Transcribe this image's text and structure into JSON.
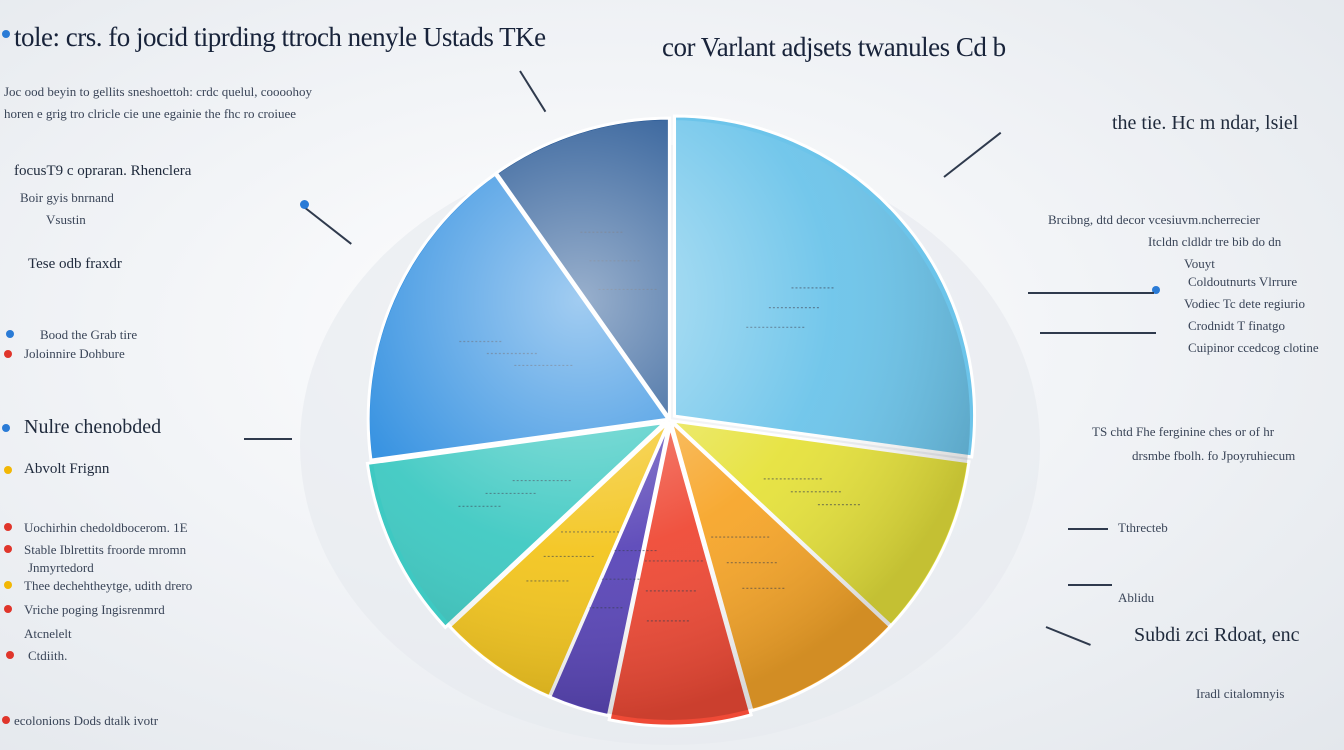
{
  "colors": {
    "bg": "#eef1f5",
    "ink": "#1f2a3c",
    "accent_red": "#e0352b",
    "accent_blue": "#2a7bd6",
    "accent_yellow": "#f2b705"
  },
  "header": {
    "left_title": "tole: crs. fo jocid tiprding ttroch nenyle Ustads TKe",
    "right_title": "cor Varlant adjsets twanules Cd b"
  },
  "left_panel": {
    "intro1": "Joc ood beyin to gellits sneshoettoh: crdc quelul, coooohoy",
    "intro2": "horen e grig tro clricle cie une egainie the fhc ro croiuee",
    "heading1": "focusT9 c opraran. Rhenclera",
    "sub1": "Boir gyis bnrnand",
    "sub2": "Vsustin",
    "sub3": "Tese odb fraxdr",
    "item1": "Bood the Grab tire",
    "item2": "Joloinnire Dohbure",
    "heading2": "Nulre chenobded",
    "item3": "Abvolt Frignn",
    "list": [
      "Uochirhin chedoldbocerom. 1E",
      "Stable Iblrettits froorde mromn",
      "Jnmyrtedord",
      "Thee dechehtheytge, udith drero",
      "Vriche poging Ingisrenmrd",
      "Atcnelelt",
      "Ctdiith."
    ],
    "footer": "ecolonions Dods dtalk ivotr"
  },
  "right_panel": {
    "heading": "the tie. Hc m ndar, lsiel",
    "block1": [
      "Brcibng, dtd decor vcesiuvm.ncherrecier",
      "Itcldn cldldr tre bib do dn",
      "Vouyt"
    ],
    "block2": [
      "Coldoutnurts Vlrrure",
      "Vodiec Tc dete regiurio",
      "Crodnidt T finatgo",
      "Cuipinor ccedcog clotine"
    ],
    "block3": [
      "TS chtd Fhe ferginine ches or of hr",
      "drsmbe fbolh. fo Jpoyruhiecum"
    ],
    "label1": "Tthrecteb",
    "label2": "Ablidu",
    "heading2": "Subdi zci Rdoat, enc",
    "footer": "Iradl citalomnyis"
  },
  "chart_data": {
    "type": "pie",
    "title": "",
    "categories": [
      "Sky Blue",
      "Yellow",
      "Orange",
      "Red",
      "Violet",
      "Gold",
      "Teal",
      "Cobalt",
      "Navy"
    ],
    "values": [
      25,
      9,
      8,
      7,
      3,
      6,
      9,
      16,
      9
    ],
    "colors": [
      "#6cc4ea",
      "#e6e23c",
      "#f7a62a",
      "#ef4a36",
      "#5a46b8",
      "#f3c51e",
      "#3ec9c2",
      "#2f8ee0",
      "#1c4f8f"
    ]
  }
}
